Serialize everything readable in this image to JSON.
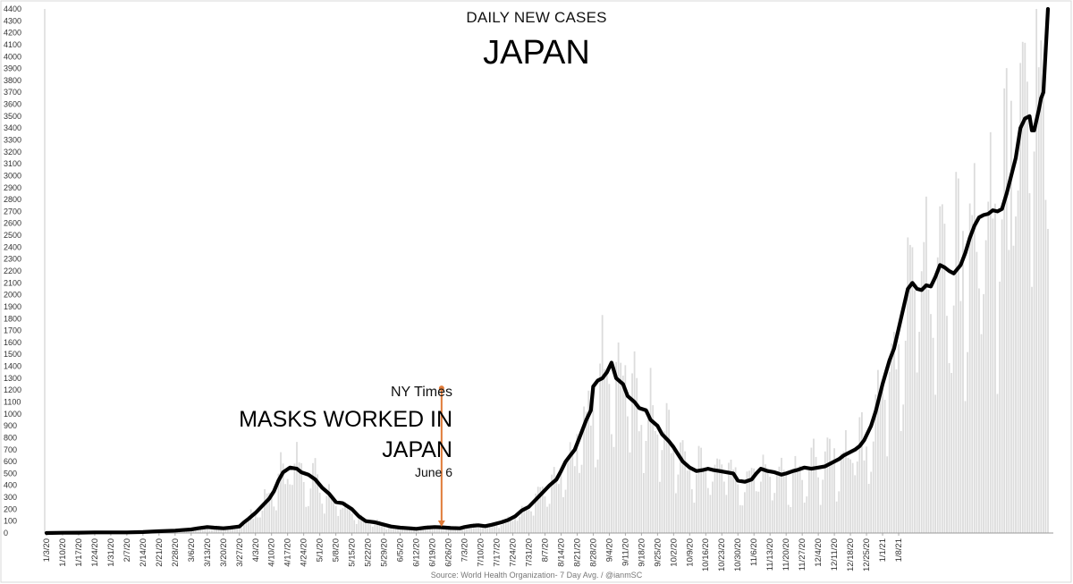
{
  "chart_data": {
    "type": "bar+line",
    "title": "DAILY NEW CASES",
    "subtitle": "JAPAN",
    "ylim": [
      0,
      4400
    ],
    "yticks": [
      0,
      100,
      200,
      300,
      400,
      500,
      600,
      700,
      800,
      900,
      1000,
      1100,
      1200,
      1300,
      1400,
      1500,
      1600,
      1700,
      1800,
      1900,
      2000,
      2100,
      2200,
      2300,
      2400,
      2500,
      2600,
      2700,
      2800,
      2900,
      3000,
      3100,
      3200,
      3300,
      3400,
      3500,
      3600,
      3700,
      3800,
      3900,
      4000,
      4100,
      4200,
      4300,
      4400
    ],
    "xticks": [
      "1/3/20",
      "1/10/20",
      "1/17/20",
      "1/24/20",
      "1/31/20",
      "2/7/20",
      "2/14/20",
      "2/21/20",
      "2/28/20",
      "3/6/20",
      "3/13/20",
      "3/20/20",
      "3/27/20",
      "4/3/20",
      "4/10/20",
      "4/17/20",
      "4/24/20",
      "5/1/20",
      "5/8/20",
      "5/15/20",
      "5/22/20",
      "5/29/20",
      "6/5/20",
      "6/12/20",
      "6/19/20",
      "6/26/20",
      "7/3/20",
      "7/10/20",
      "7/17/20",
      "7/24/20",
      "7/31/20",
      "8/7/20",
      "8/14/20",
      "8/21/20",
      "8/28/20",
      "9/4/20",
      "9/11/20",
      "9/18/20",
      "9/25/20",
      "10/2/20",
      "10/9/20",
      "10/16/20",
      "10/23/20",
      "10/30/20",
      "11/6/20",
      "11/13/20",
      "11/20/20",
      "11/27/20",
      "12/4/20",
      "12/11/20",
      "12/18/20",
      "12/25/20",
      "1/1/21",
      "1/8/21"
    ],
    "grid": false,
    "series": [
      {
        "kind": "line",
        "color": "#000000",
        "points": [
          [
            0,
            0
          ],
          [
            7,
            2
          ],
          [
            14,
            3
          ],
          [
            21,
            5
          ],
          [
            28,
            5
          ],
          [
            35,
            5
          ],
          [
            42,
            8
          ],
          [
            49,
            15
          ],
          [
            56,
            20
          ],
          [
            59,
            25
          ],
          [
            63,
            30
          ],
          [
            66,
            40
          ],
          [
            70,
            50
          ],
          [
            73,
            45
          ],
          [
            77,
            40
          ],
          [
            80,
            45
          ],
          [
            84,
            55
          ],
          [
            86,
            90
          ],
          [
            88,
            120
          ],
          [
            91,
            170
          ],
          [
            94,
            230
          ],
          [
            97,
            290
          ],
          [
            99,
            350
          ],
          [
            101,
            440
          ],
          [
            103,
            510
          ],
          [
            106,
            550
          ],
          [
            109,
            540
          ],
          [
            111,
            510
          ],
          [
            114,
            490
          ],
          [
            117,
            450
          ],
          [
            120,
            380
          ],
          [
            123,
            330
          ],
          [
            126,
            260
          ],
          [
            129,
            250
          ],
          [
            133,
            200
          ],
          [
            136,
            140
          ],
          [
            139,
            100
          ],
          [
            143,
            90
          ],
          [
            147,
            70
          ],
          [
            150,
            55
          ],
          [
            154,
            45
          ],
          [
            158,
            40
          ],
          [
            161,
            35
          ],
          [
            165,
            45
          ],
          [
            169,
            50
          ],
          [
            172,
            48
          ],
          [
            176,
            42
          ],
          [
            180,
            40
          ],
          [
            182,
            50
          ],
          [
            185,
            60
          ],
          [
            188,
            65
          ],
          [
            191,
            58
          ],
          [
            194,
            70
          ],
          [
            198,
            90
          ],
          [
            201,
            110
          ],
          [
            204,
            140
          ],
          [
            207,
            190
          ],
          [
            210,
            220
          ],
          [
            213,
            280
          ],
          [
            216,
            340
          ],
          [
            219,
            400
          ],
          [
            222,
            450
          ],
          [
            224,
            520
          ],
          [
            226,
            600
          ],
          [
            228,
            650
          ],
          [
            230,
            700
          ],
          [
            232,
            800
          ],
          [
            235,
            950
          ],
          [
            237,
            1030
          ],
          [
            238,
            1230
          ],
          [
            240,
            1280
          ],
          [
            242,
            1300
          ],
          [
            244,
            1350
          ],
          [
            246,
            1430
          ],
          [
            248,
            1300
          ],
          [
            251,
            1250
          ],
          [
            253,
            1150
          ],
          [
            256,
            1100
          ],
          [
            258,
            1050
          ],
          [
            261,
            1030
          ],
          [
            263,
            950
          ],
          [
            266,
            900
          ],
          [
            268,
            830
          ],
          [
            271,
            770
          ],
          [
            273,
            720
          ],
          [
            275,
            660
          ],
          [
            277,
            600
          ],
          [
            280,
            550
          ],
          [
            283,
            520
          ],
          [
            286,
            530
          ],
          [
            288,
            540
          ],
          [
            290,
            530
          ],
          [
            293,
            520
          ],
          [
            296,
            510
          ],
          [
            299,
            500
          ],
          [
            301,
            440
          ],
          [
            304,
            430
          ],
          [
            307,
            450
          ],
          [
            309,
            500
          ],
          [
            311,
            540
          ],
          [
            314,
            520
          ],
          [
            317,
            510
          ],
          [
            320,
            490
          ],
          [
            322,
            500
          ],
          [
            325,
            520
          ],
          [
            327,
            530
          ],
          [
            330,
            550
          ],
          [
            333,
            540
          ],
          [
            336,
            550
          ],
          [
            339,
            560
          ],
          [
            342,
            590
          ],
          [
            345,
            620
          ],
          [
            347,
            650
          ],
          [
            350,
            680
          ],
          [
            352,
            700
          ],
          [
            354,
            730
          ],
          [
            356,
            780
          ],
          [
            359,
            900
          ],
          [
            361,
            1020
          ],
          [
            364,
            1250
          ],
          [
            367,
            1450
          ],
          [
            369,
            1550
          ],
          [
            372,
            1800
          ],
          [
            375,
            2050
          ],
          [
            377,
            2100
          ],
          [
            379,
            2050
          ],
          [
            381,
            2040
          ],
          [
            383,
            2080
          ],
          [
            385,
            2070
          ],
          [
            387,
            2150
          ],
          [
            389,
            2250
          ],
          [
            391,
            2230
          ],
          [
            393,
            2200
          ],
          [
            395,
            2180
          ],
          [
            398,
            2250
          ],
          [
            400,
            2350
          ],
          [
            402,
            2480
          ],
          [
            404,
            2580
          ],
          [
            406,
            2650
          ],
          [
            408,
            2670
          ],
          [
            410,
            2680
          ],
          [
            412,
            2710
          ],
          [
            414,
            2700
          ],
          [
            416,
            2720
          ],
          [
            418,
            2850
          ],
          [
            420,
            3000
          ],
          [
            422,
            3150
          ],
          [
            424,
            3400
          ],
          [
            426,
            3480
          ],
          [
            428,
            3500
          ],
          [
            429,
            3380
          ],
          [
            430,
            3380
          ],
          [
            432,
            3550
          ],
          [
            433,
            3650
          ],
          [
            434,
            3700
          ],
          [
            436,
            4400
          ]
        ]
      },
      {
        "kind": "bars",
        "color": "#d3d3d3",
        "description_ref": "daily values"
      }
    ],
    "xrange": [
      0,
      436
    ]
  },
  "annotation": {
    "source_line1": "NY Times",
    "headline_line1": "MASKS WORKED IN",
    "headline_line2": "JAPAN",
    "date": "June 6",
    "x_day": 172,
    "y_top": 1200,
    "arrow_color": "#e07b39"
  },
  "footer": {
    "source": "Source: World Health Organization- 7 Day Avg. / @ianmSC"
  }
}
